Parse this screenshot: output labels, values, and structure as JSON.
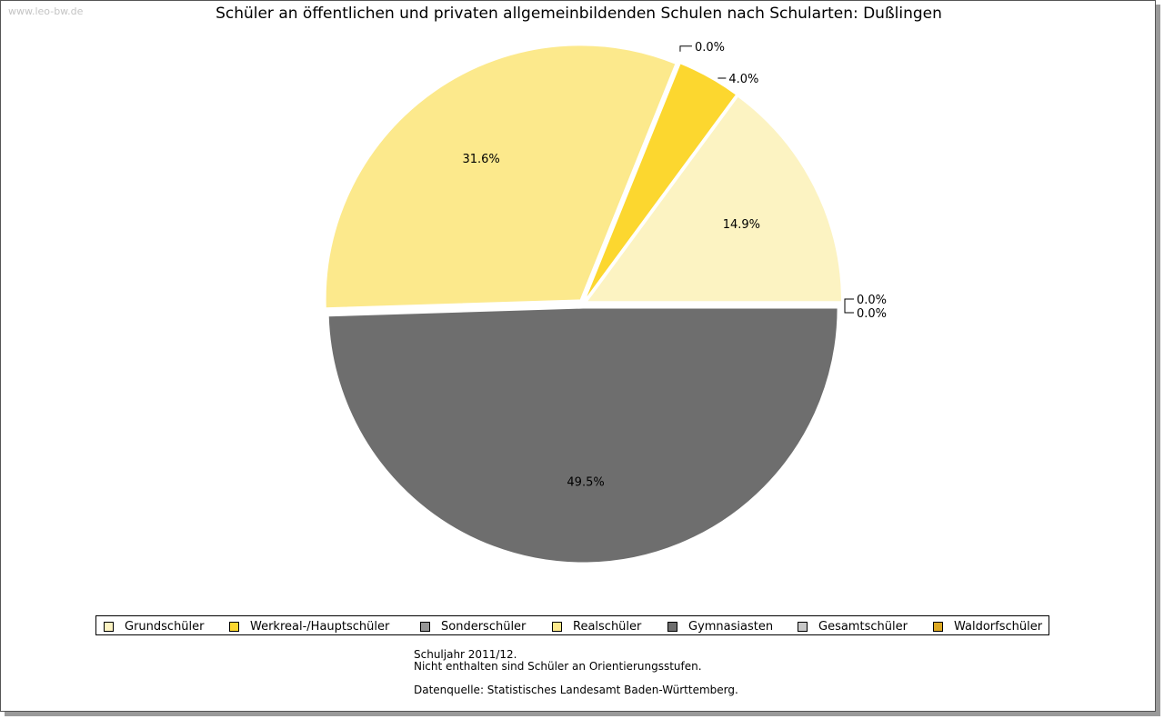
{
  "watermark": "www.leo-bw.de",
  "chart_data": {
    "type": "pie",
    "title": "Schüler an öffentlichen und privaten allgemeinbildenden Schulen nach Schularten: Dußlingen",
    "start_angle_deg": 0,
    "direction": "counterclockwise",
    "slices": [
      {
        "name": "Grundschüler",
        "value": 14.9,
        "label": "14.9%",
        "color": "#fcf3c2"
      },
      {
        "name": "Werkreal-/Hauptschüler",
        "value": 4.0,
        "label": "4.0%",
        "color": "#fcd72f"
      },
      {
        "name": "Sonderschüler",
        "value": 0.0,
        "label": "0.0%",
        "color": "#969696"
      },
      {
        "name": "Realschüler",
        "value": 31.6,
        "label": "31.6%",
        "color": "#fce98c"
      },
      {
        "name": "Gymnasiasten",
        "value": 49.5,
        "label": "49.5%",
        "color": "#6e6e6e"
      },
      {
        "name": "Gesamtschüler",
        "value": 0.0,
        "label": "0.0%",
        "color": "#c8c8c8"
      },
      {
        "name": "Waldorfschüler",
        "value": 0.0,
        "label": "0.0%",
        "color": "#dca823"
      }
    ],
    "legend_position": "bottom"
  },
  "notes": {
    "line1": "Schuljahr 2011/12.",
    "line2": "Nicht enthalten sind Schüler an Orientierungsstufen.",
    "line3": "Datenquelle: Statistisches Landesamt Baden-Württemberg."
  }
}
